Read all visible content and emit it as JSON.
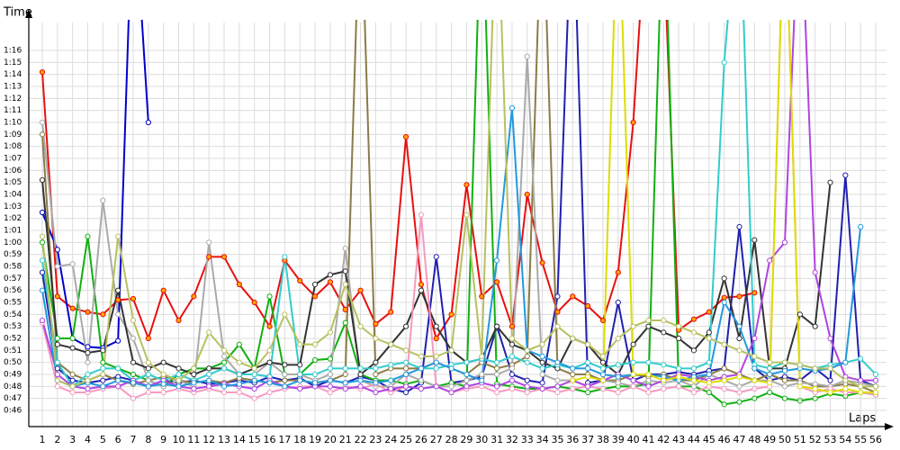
{
  "chart_data": {
    "type": "line",
    "y_title": "Time",
    "x_title": "Laps",
    "grid": true,
    "x": [
      1,
      2,
      3,
      4,
      5,
      6,
      7,
      8,
      9,
      10,
      11,
      12,
      13,
      14,
      15,
      16,
      17,
      18,
      19,
      20,
      21,
      22,
      23,
      24,
      25,
      26,
      27,
      28,
      29,
      30,
      31,
      32,
      33,
      34,
      35,
      36,
      37,
      38,
      39,
      40,
      41,
      42,
      43,
      44,
      45,
      46,
      47,
      48,
      49,
      50,
      51,
      52,
      53,
      54,
      55,
      56
    ],
    "xlim": [
      0.11,
      56.71
    ],
    "xticks": [
      1,
      2,
      3,
      4,
      5,
      6,
      7,
      8,
      9,
      10,
      11,
      12,
      13,
      14,
      15,
      16,
      17,
      18,
      19,
      20,
      21,
      22,
      23,
      24,
      25,
      26,
      27,
      28,
      29,
      30,
      31,
      32,
      33,
      34,
      35,
      36,
      37,
      38,
      39,
      40,
      41,
      42,
      43,
      44,
      45,
      46,
      47,
      48,
      49,
      50,
      51,
      52,
      53,
      54,
      55,
      56
    ],
    "ylim": [
      44.65,
      78.33
    ],
    "yticks": [
      {
        "value": 46,
        "label": "0:46"
      },
      {
        "value": 47,
        "label": "0:47"
      },
      {
        "value": 48,
        "label": "0:48"
      },
      {
        "value": 49,
        "label": "0:49"
      },
      {
        "value": 50,
        "label": "0:50"
      },
      {
        "value": 51,
        "label": "0:51"
      },
      {
        "value": 52,
        "label": "0:52"
      },
      {
        "value": 53,
        "label": "0:53"
      },
      {
        "value": 54,
        "label": "0:54"
      },
      {
        "value": 55,
        "label": "0:55"
      },
      {
        "value": 56,
        "label": "0:56"
      },
      {
        "value": 57,
        "label": "0:57"
      },
      {
        "value": 58,
        "label": "0:58"
      },
      {
        "value": 59,
        "label": "0:59"
      },
      {
        "value": 60,
        "label": "1:00"
      },
      {
        "value": 61,
        "label": "1:01"
      },
      {
        "value": 62,
        "label": "1:02"
      },
      {
        "value": 63,
        "label": "1:03"
      },
      {
        "value": 64,
        "label": "1:04"
      },
      {
        "value": 65,
        "label": "1:05"
      },
      {
        "value": 66,
        "label": "1:06"
      },
      {
        "value": 67,
        "label": "1:07"
      },
      {
        "value": 68,
        "label": "1:08"
      },
      {
        "value": 69,
        "label": "1:09"
      },
      {
        "value": 70,
        "label": "1:10"
      },
      {
        "value": 71,
        "label": "1:11"
      },
      {
        "value": 72,
        "label": "1:12"
      },
      {
        "value": 73,
        "label": "1:13"
      },
      {
        "value": 74,
        "label": "1:14"
      },
      {
        "value": 75,
        "label": "1:15"
      },
      {
        "value": 76,
        "label": "1:16"
      }
    ],
    "series": [
      {
        "color": "#e81010",
        "marker_fill": "#ffa500",
        "values": [
          74.2,
          55.5,
          54.5,
          54.2,
          54,
          55.2,
          55.3,
          52,
          56,
          53.5,
          55.5,
          58.8,
          58.8,
          56.5,
          55,
          53,
          58.5,
          56.8,
          55.5,
          56.7,
          54.4,
          56,
          53.2,
          54.2,
          68.8,
          56.5,
          52,
          54,
          64.8,
          55.5,
          56.7,
          53,
          64,
          58.3,
          54.2,
          55.5,
          54.7,
          53.5,
          57.5,
          70,
          90,
          85,
          52.7,
          53.6,
          54.2,
          55.4,
          55.5,
          55.8,
          null,
          null,
          null,
          null,
          null,
          null,
          null,
          null
        ]
      },
      {
        "color": "#0000cc",
        "values": [
          62.5,
          59.4,
          52,
          51.3,
          51.2,
          51.8,
          90,
          70,
          null,
          null,
          null,
          null,
          null,
          null,
          null,
          null,
          null,
          null,
          null,
          null,
          null,
          null,
          null,
          null,
          null,
          null,
          null,
          null,
          null,
          null,
          null,
          null,
          null,
          null,
          null,
          null,
          null,
          null,
          null,
          null,
          null,
          null,
          null,
          null,
          null,
          null,
          null,
          null,
          null,
          null,
          null,
          null,
          null,
          null,
          null,
          null
        ]
      },
      {
        "color": "#2020b0",
        "values": [
          57.5,
          49.5,
          48.5,
          48.3,
          48.5,
          48.8,
          48.5,
          48,
          48.5,
          48.3,
          48.5,
          48.2,
          48.3,
          48.5,
          48.3,
          48.8,
          48.5,
          48.7,
          48,
          48.5,
          48.3,
          48.8,
          48.5,
          47.8,
          47.5,
          48.3,
          58.8,
          48.3,
          48.5,
          48.8,
          53,
          49,
          48.5,
          48.3,
          55.5,
          90,
          48.3,
          48.5,
          55,
          48.5,
          49,
          49,
          49.2,
          49,
          49.3,
          49.5,
          61.3,
          49.5,
          48.5,
          48.8,
          48.5,
          49.5,
          48.5,
          65.6,
          48.5,
          48
        ]
      },
      {
        "color": "#10b010",
        "values": [
          60,
          52,
          52,
          60.5,
          50,
          49.5,
          49,
          48.5,
          48,
          49,
          49.5,
          49.5,
          50,
          51.5,
          49.5,
          55.5,
          49,
          49,
          50.2,
          50.3,
          53.3,
          49,
          48.5,
          48.5,
          48.2,
          48.5,
          48,
          48.3,
          48,
          90,
          48.2,
          48,
          47.8,
          47.8,
          48,
          47.8,
          47.5,
          47.8,
          48,
          48,
          48.2,
          90,
          48,
          48,
          47.5,
          46.5,
          46.7,
          47,
          47.5,
          47,
          46.8,
          47,
          47.4,
          47.2,
          47.5,
          47.3
        ]
      },
      {
        "color": "#8b7b45",
        "values": [
          69,
          50,
          49,
          48.5,
          49,
          48.5,
          48.2,
          48.5,
          48.8,
          48.5,
          48.3,
          48.5,
          48.3,
          48.7,
          48.5,
          48.3,
          48.5,
          48.5,
          48.3,
          48.5,
          49,
          90,
          49,
          49.5,
          49.5,
          49.5,
          50,
          49.5,
          49,
          50,
          49.5,
          49.8,
          50.5,
          90,
          49.5,
          49,
          49,
          48.5,
          48.5,
          49,
          48.8,
          49,
          48.5,
          48.5,
          49,
          49.5,
          49,
          48.5,
          49,
          48.5,
          48.5,
          48,
          48,
          48.2,
          48,
          47.5
        ]
      },
      {
        "color": "#aaaaaa",
        "values": [
          70,
          58,
          58.2,
          50,
          63.5,
          54,
          52,
          48.5,
          48,
          48.5,
          48,
          60,
          50.5,
          49,
          49,
          50,
          49,
          49,
          48.5,
          49,
          59.5,
          48.5,
          48,
          48,
          49,
          48.5,
          48,
          48,
          48.5,
          49,
          49,
          49.5,
          75.5,
          49,
          48.5,
          48.5,
          48,
          48.5,
          48.3,
          48,
          48.5,
          48.3,
          48.5,
          48,
          49,
          48.5,
          48,
          48.5,
          48.5,
          48,
          48.3,
          48.2,
          48,
          48.5,
          48.3,
          48
        ]
      },
      {
        "color": "#333333",
        "values": [
          65.2,
          51.5,
          51.2,
          50.8,
          51,
          56,
          50,
          49.5,
          50,
          49.5,
          49,
          49.5,
          49.5,
          49,
          49.5,
          50,
          49.8,
          49.8,
          56.5,
          57.3,
          57.6,
          49,
          50,
          51.5,
          53,
          56,
          53,
          51,
          50,
          50.3,
          53,
          51.5,
          51,
          50,
          49.5,
          52,
          51.5,
          50,
          49,
          51.5,
          53,
          52.5,
          52,
          51,
          52.5,
          57,
          52,
          60.2,
          49.5,
          49.5,
          54,
          53,
          65,
          null,
          null,
          null
        ]
      },
      {
        "color": "#f69ac0",
        "values": [
          53.3,
          48,
          47.5,
          47.5,
          47.8,
          48,
          47,
          47.5,
          47.5,
          47.8,
          47.5,
          47.8,
          47.5,
          47.5,
          47,
          47.5,
          47.8,
          48,
          48,
          47.5,
          48,
          47.8,
          48.2,
          47.5,
          48,
          62.3,
          48,
          47.5,
          47.8,
          48,
          47.5,
          47.8,
          47.5,
          47.8,
          47.5,
          47.8,
          48,
          47.8,
          47.5,
          48,
          47.5,
          47.8,
          48,
          47.5,
          48,
          47.8,
          47.5,
          47.8,
          48,
          90,
          48,
          47.5,
          47.8,
          47.5,
          47.5,
          47.3
        ]
      },
      {
        "color": "#33cccc",
        "values": [
          58.5,
          50,
          48,
          49,
          49.5,
          49.5,
          48.5,
          49,
          48.5,
          49,
          48.5,
          49,
          49.5,
          49,
          49,
          48.8,
          58.8,
          49,
          49,
          49.5,
          49.5,
          49.5,
          49.5,
          49.8,
          50,
          49.5,
          49.5,
          49.8,
          50,
          50.3,
          50,
          50.5,
          50,
          49.5,
          49.8,
          49.5,
          50,
          49.5,
          49.8,
          50,
          50,
          49.8,
          49.5,
          49.5,
          50,
          75,
          90,
          49.8,
          49.5,
          50,
          49.8,
          49.5,
          49.8,
          50,
          50.3,
          49
        ]
      },
      {
        "color": "#b044e0",
        "values": [
          53.5,
          49,
          48,
          47.8,
          48,
          48,
          48.5,
          48,
          48.5,
          48,
          47.8,
          48,
          48.2,
          48,
          47.8,
          48.5,
          48,
          47.8,
          48,
          48,
          47.8,
          48,
          47.5,
          47.8,
          48,
          47.8,
          48,
          47.5,
          48,
          48.3,
          48,
          48.5,
          48,
          47.8,
          48,
          48.5,
          48,
          48.5,
          49,
          48.5,
          48,
          48.5,
          49,
          48.8,
          48.5,
          48.8,
          49,
          52,
          58.5,
          60,
          90,
          57.5,
          52,
          48.8,
          48.5,
          48.5
        ]
      },
      {
        "color": "#2299dd",
        "values": [
          56,
          48.5,
          48,
          48.3,
          48,
          48.5,
          48.3,
          48,
          48.2,
          48,
          48.3,
          48.5,
          48,
          48.2,
          48.5,
          48.3,
          48,
          48.5,
          48.3,
          48.5,
          48.3,
          48.5,
          48.3,
          48.5,
          49,
          49.5,
          50,
          49.5,
          49,
          48.5,
          58.5,
          71.2,
          51,
          50.5,
          50,
          49.5,
          49.5,
          49,
          48.8,
          49,
          49,
          48.8,
          48.5,
          48.8,
          49,
          55,
          53,
          49.5,
          49,
          49.3,
          49.5,
          49.3,
          49.5,
          50,
          61.3,
          null
        ]
      },
      {
        "color": "#b8c060",
        "values": [
          60.5,
          48.5,
          48,
          48.5,
          49,
          60.5,
          53.5,
          50,
          49,
          48.5,
          49.5,
          52.5,
          51,
          50,
          49.5,
          51,
          54,
          51.5,
          51.5,
          52.5,
          56.5,
          53,
          52,
          51.5,
          51,
          50.5,
          50.5,
          51,
          62.3,
          50.5,
          90,
          52,
          51,
          51.5,
          53,
          52,
          51.5,
          50.5,
          52,
          53,
          53.5,
          53.5,
          53,
          52.5,
          52,
          51.5,
          51,
          50.5,
          50,
          50,
          49.8,
          49.5,
          49.5,
          48.5,
          48,
          48
        ]
      },
      {
        "color": "#dddd00",
        "values": [
          null,
          null,
          null,
          null,
          null,
          null,
          null,
          null,
          null,
          null,
          null,
          null,
          null,
          null,
          null,
          null,
          null,
          null,
          null,
          null,
          null,
          null,
          null,
          null,
          null,
          null,
          null,
          null,
          null,
          null,
          null,
          null,
          null,
          null,
          null,
          48.5,
          48.8,
          48.5,
          90,
          49,
          49,
          48.5,
          48.8,
          48.5,
          48.3,
          48.5,
          48.8,
          48.5,
          48.3,
          90,
          48,
          47.8,
          47.5,
          47.8,
          47.5,
          47.5
        ]
      }
    ]
  }
}
